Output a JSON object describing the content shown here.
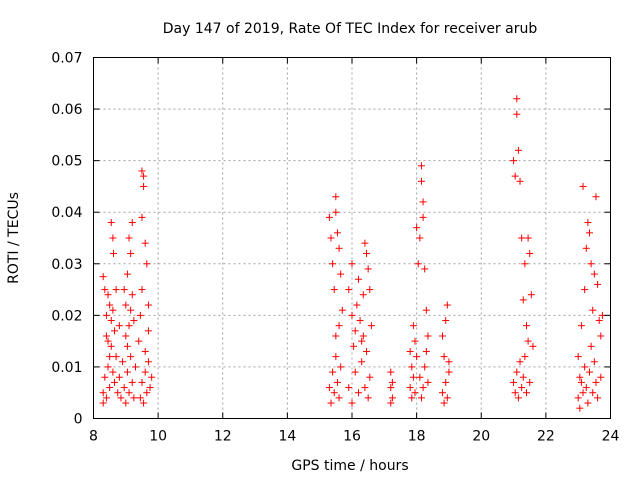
{
  "chart_data": {
    "type": "scatter",
    "title": "Day 147 of 2019, Rate Of TEC Index for receiver arub",
    "xlabel": "GPS time / hours",
    "ylabel": "ROTI / TECUs",
    "xlim": [
      8,
      24
    ],
    "ylim": [
      0,
      0.07
    ],
    "x_ticks": [
      8,
      10,
      12,
      14,
      16,
      18,
      20,
      22,
      24
    ],
    "y_ticks": [
      0,
      0.01,
      0.02,
      0.03,
      0.04,
      0.05,
      0.06,
      0.07
    ],
    "x_tick_labels": [
      "8",
      "10",
      "12",
      "14",
      "16",
      "18",
      "20",
      "22",
      "24"
    ],
    "y_tick_labels": [
      "0",
      "0.01",
      "0.02",
      "0.03",
      "0.04",
      "0.05",
      "0.06",
      "0.07"
    ],
    "grid": true,
    "marker": "+",
    "color": "#ff0000",
    "series": [
      {
        "name": "ROTI",
        "points": [
          [
            8.3,
            0.0275
          ],
          [
            8.35,
            0.025
          ],
          [
            8.4,
            0.02
          ],
          [
            8.45,
            0.015
          ],
          [
            8.5,
            0.012
          ],
          [
            8.55,
            0.038
          ],
          [
            8.6,
            0.035
          ],
          [
            8.62,
            0.032
          ],
          [
            8.7,
            0.025
          ],
          [
            8.8,
            0.018
          ],
          [
            8.3,
            0.005
          ],
          [
            8.35,
            0.008
          ],
          [
            8.4,
            0.004
          ],
          [
            8.45,
            0.01
          ],
          [
            8.5,
            0.006
          ],
          [
            8.55,
            0.014
          ],
          [
            8.6,
            0.009
          ],
          [
            8.65,
            0.007
          ],
          [
            8.7,
            0.012
          ],
          [
            8.75,
            0.005
          ],
          [
            8.3,
            0.003
          ],
          [
            8.4,
            0.016
          ],
          [
            8.5,
            0.022
          ],
          [
            8.55,
            0.019
          ],
          [
            8.6,
            0.021
          ],
          [
            8.65,
            0.017
          ],
          [
            8.45,
            0.024
          ],
          [
            8.8,
            0.008
          ],
          [
            8.85,
            0.004
          ],
          [
            8.9,
            0.011
          ],
          [
            8.95,
            0.025
          ],
          [
            9.0,
            0.022
          ],
          [
            9.0,
            0.016
          ],
          [
            9.05,
            0.014
          ],
          [
            9.05,
            0.028
          ],
          [
            9.1,
            0.035
          ],
          [
            9.15,
            0.032
          ],
          [
            9.2,
            0.038
          ],
          [
            9.2,
            0.024
          ],
          [
            9.25,
            0.019
          ],
          [
            8.95,
            0.006
          ],
          [
            9.0,
            0.003
          ],
          [
            9.05,
            0.009
          ],
          [
            9.1,
            0.005
          ],
          [
            9.15,
            0.012
          ],
          [
            9.2,
            0.007
          ],
          [
            9.25,
            0.004
          ],
          [
            9.3,
            0.01
          ],
          [
            9.1,
            0.018
          ],
          [
            9.15,
            0.021
          ],
          [
            9.4,
            0.015
          ],
          [
            9.45,
            0.02
          ],
          [
            9.5,
            0.025
          ],
          [
            9.5,
            0.048
          ],
          [
            9.55,
            0.047
          ],
          [
            9.55,
            0.045
          ],
          [
            9.5,
            0.039
          ],
          [
            9.6,
            0.034
          ],
          [
            9.65,
            0.03
          ],
          [
            9.7,
            0.022
          ],
          [
            9.45,
            0.004
          ],
          [
            9.5,
            0.007
          ],
          [
            9.55,
            0.003
          ],
          [
            9.6,
            0.009
          ],
          [
            9.65,
            0.005
          ],
          [
            9.7,
            0.011
          ],
          [
            9.75,
            0.006
          ],
          [
            9.8,
            0.008
          ],
          [
            9.6,
            0.013
          ],
          [
            9.7,
            0.017
          ],
          [
            15.3,
            0.039
          ],
          [
            15.35,
            0.035
          ],
          [
            15.4,
            0.03
          ],
          [
            15.45,
            0.025
          ],
          [
            15.5,
            0.043
          ],
          [
            15.5,
            0.04
          ],
          [
            15.55,
            0.036
          ],
          [
            15.6,
            0.033
          ],
          [
            15.65,
            0.028
          ],
          [
            15.7,
            0.021
          ],
          [
            15.3,
            0.006
          ],
          [
            15.35,
            0.003
          ],
          [
            15.4,
            0.009
          ],
          [
            15.45,
            0.005
          ],
          [
            15.5,
            0.012
          ],
          [
            15.55,
            0.007
          ],
          [
            15.6,
            0.004
          ],
          [
            15.65,
            0.01
          ],
          [
            15.5,
            0.016
          ],
          [
            15.6,
            0.018
          ],
          [
            15.9,
            0.025
          ],
          [
            16.0,
            0.03
          ],
          [
            16.0,
            0.02
          ],
          [
            16.05,
            0.014
          ],
          [
            16.1,
            0.017
          ],
          [
            16.15,
            0.022
          ],
          [
            16.2,
            0.027
          ],
          [
            16.25,
            0.019
          ],
          [
            16.3,
            0.015
          ],
          [
            16.35,
            0.024
          ],
          [
            16.4,
            0.034
          ],
          [
            16.45,
            0.032
          ],
          [
            16.5,
            0.029
          ],
          [
            16.55,
            0.025
          ],
          [
            16.6,
            0.018
          ],
          [
            15.9,
            0.006
          ],
          [
            16.0,
            0.003
          ],
          [
            16.1,
            0.009
          ],
          [
            16.2,
            0.005
          ],
          [
            16.3,
            0.011
          ],
          [
            16.4,
            0.006
          ],
          [
            16.5,
            0.004
          ],
          [
            16.55,
            0.008
          ],
          [
            16.45,
            0.013
          ],
          [
            16.35,
            0.016
          ],
          [
            17.2,
            0.009
          ],
          [
            17.2,
            0.006
          ],
          [
            17.25,
            0.004
          ],
          [
            17.2,
            0.003
          ],
          [
            17.25,
            0.007
          ],
          [
            17.8,
            0.013
          ],
          [
            17.85,
            0.01
          ],
          [
            17.9,
            0.018
          ],
          [
            17.95,
            0.015
          ],
          [
            17.8,
            0.006
          ],
          [
            17.85,
            0.004
          ],
          [
            17.9,
            0.008
          ],
          [
            17.95,
            0.005
          ],
          [
            18.0,
            0.037
          ],
          [
            18.05,
            0.03
          ],
          [
            18.1,
            0.035
          ],
          [
            18.15,
            0.049
          ],
          [
            18.15,
            0.046
          ],
          [
            18.2,
            0.042
          ],
          [
            18.2,
            0.039
          ],
          [
            18.25,
            0.029
          ],
          [
            18.3,
            0.021
          ],
          [
            18.35,
            0.016
          ],
          [
            18.0,
            0.012
          ],
          [
            18.1,
            0.008
          ],
          [
            18.15,
            0.004
          ],
          [
            18.2,
            0.006
          ],
          [
            18.25,
            0.01
          ],
          [
            18.3,
            0.013
          ],
          [
            18.35,
            0.007
          ],
          [
            18.8,
            0.016
          ],
          [
            18.85,
            0.012
          ],
          [
            18.9,
            0.019
          ],
          [
            18.95,
            0.022
          ],
          [
            19.0,
            0.009
          ],
          [
            18.8,
            0.005
          ],
          [
            18.85,
            0.003
          ],
          [
            18.9,
            0.007
          ],
          [
            18.95,
            0.004
          ],
          [
            19.0,
            0.011
          ],
          [
            21.0,
            0.05
          ],
          [
            21.05,
            0.047
          ],
          [
            21.1,
            0.062
          ],
          [
            21.1,
            0.059
          ],
          [
            21.15,
            0.052
          ],
          [
            21.2,
            0.046
          ],
          [
            21.25,
            0.035
          ],
          [
            21.3,
            0.023
          ],
          [
            21.35,
            0.03
          ],
          [
            21.4,
            0.018
          ],
          [
            21.45,
            0.035
          ],
          [
            21.5,
            0.032
          ],
          [
            21.55,
            0.024
          ],
          [
            21.6,
            0.014
          ],
          [
            21.0,
            0.007
          ],
          [
            21.05,
            0.005
          ],
          [
            21.1,
            0.009
          ],
          [
            21.15,
            0.004
          ],
          [
            21.2,
            0.011
          ],
          [
            21.25,
            0.006
          ],
          [
            21.3,
            0.008
          ],
          [
            21.35,
            0.012
          ],
          [
            21.4,
            0.005
          ],
          [
            21.45,
            0.015
          ],
          [
            21.5,
            0.007
          ],
          [
            23.0,
            0.012
          ],
          [
            23.05,
            0.008
          ],
          [
            23.1,
            0.018
          ],
          [
            23.15,
            0.045
          ],
          [
            23.2,
            0.025
          ],
          [
            23.25,
            0.033
          ],
          [
            23.3,
            0.038
          ],
          [
            23.35,
            0.036
          ],
          [
            23.4,
            0.03
          ],
          [
            23.45,
            0.021
          ],
          [
            23.5,
            0.028
          ],
          [
            23.55,
            0.043
          ],
          [
            23.6,
            0.026
          ],
          [
            23.65,
            0.019
          ],
          [
            23.7,
            0.016
          ],
          [
            23.75,
            0.02
          ],
          [
            23.0,
            0.004
          ],
          [
            23.05,
            0.002
          ],
          [
            23.1,
            0.007
          ],
          [
            23.15,
            0.005
          ],
          [
            23.2,
            0.01
          ],
          [
            23.25,
            0.006
          ],
          [
            23.3,
            0.003
          ],
          [
            23.35,
            0.009
          ],
          [
            23.4,
            0.014
          ],
          [
            23.45,
            0.005
          ],
          [
            23.5,
            0.011
          ],
          [
            23.55,
            0.007
          ],
          [
            23.6,
            0.004
          ],
          [
            23.7,
            0.008
          ]
        ]
      }
    ]
  }
}
